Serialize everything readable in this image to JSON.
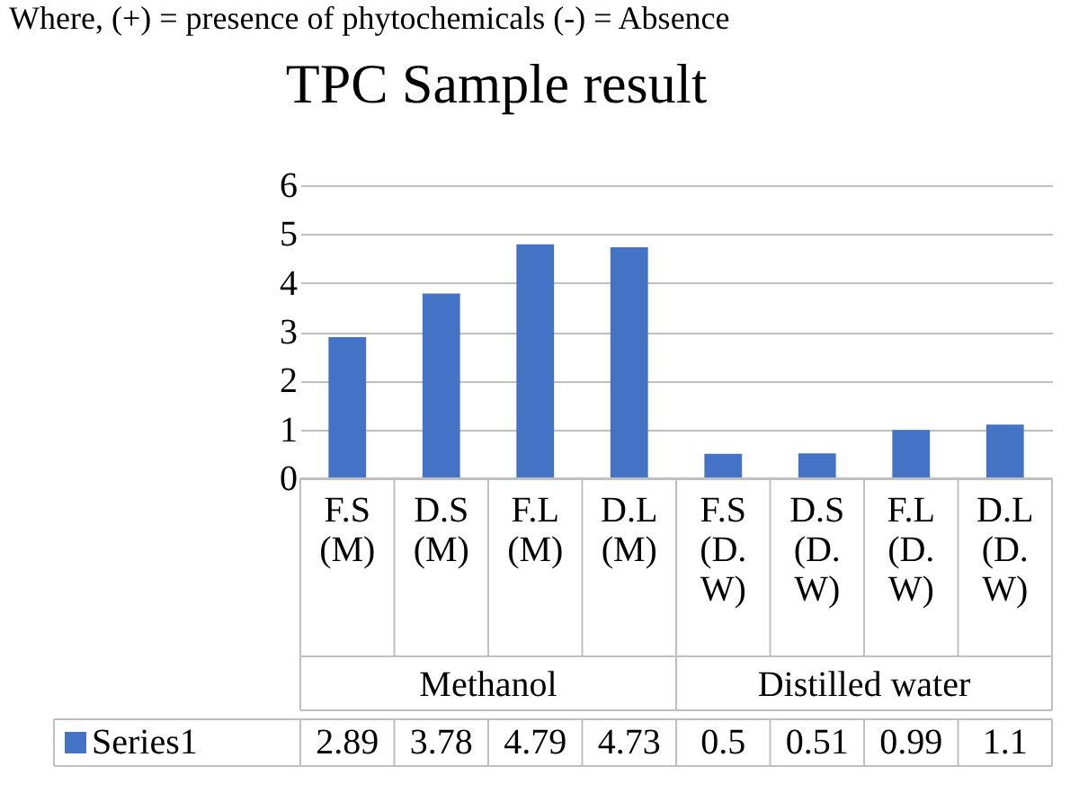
{
  "chart_data": {
    "type": "bar",
    "title": "TPC Sample result",
    "categories": [
      "F.S (M)",
      "D.S (M)",
      "F.L (M)",
      "D.L (M)",
      "F.S (D. W)",
      "D.S (D. W)",
      "F.L (D. W)",
      "D.L (D. W)"
    ],
    "series": [
      {
        "name": "Series1",
        "color": "#4472c4",
        "values": [
          2.89,
          3.78,
          4.79,
          4.73,
          0.5,
          0.51,
          0.99,
          1.1
        ]
      }
    ],
    "annotations": [
      "Where, (+) = presence of phytochemicals (-) = Absence",
      "Methanol",
      "Distilled water"
    ],
    "ylim": [
      0,
      6
    ],
    "yticks": [
      0,
      1,
      2,
      3,
      4,
      5,
      6
    ],
    "grid": "y",
    "data_labels": true,
    "legend": "bottom"
  }
}
